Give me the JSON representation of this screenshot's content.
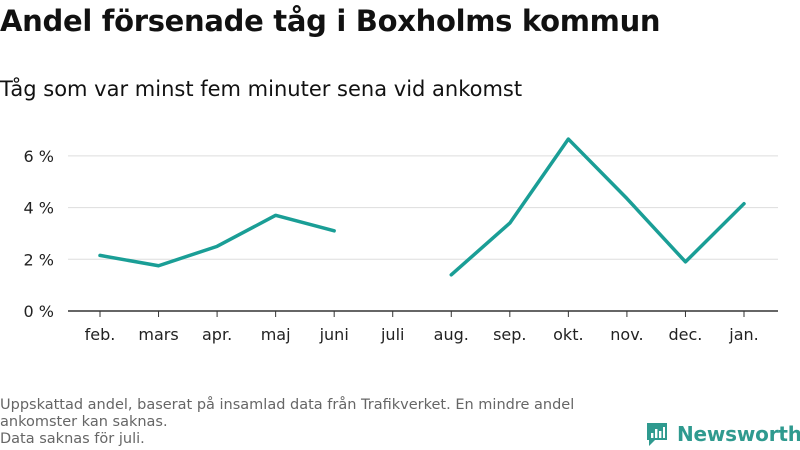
{
  "title": "Andel försenade tåg i Boxholms kommun",
  "subtitle": "Tåg som var minst fem minuter sena vid ankomst",
  "footnote": {
    "line1": "Uppskattad andel, baserat på insamlad data från Trafikverket. En mindre andel",
    "line2": "ankomster kan saknas.",
    "line3": "Data saknas för juli."
  },
  "brand": {
    "name": "Newsworthy",
    "icon": "newsworthy-logo-icon"
  },
  "colors": {
    "line": "#1a9e96",
    "grid": "#dddddd",
    "axis": "#333333",
    "brand": "#2f9a8f"
  },
  "chart_data": {
    "type": "line",
    "title": "Andel försenade tåg i Boxholms kommun",
    "subtitle": "Tåg som var minst fem minuter sena vid ankomst",
    "categories": [
      "feb.",
      "mars",
      "apr.",
      "maj",
      "juni",
      "juli",
      "aug.",
      "sep.",
      "okt.",
      "nov.",
      "dec.",
      "jan."
    ],
    "series": [
      {
        "values": [
          2.15,
          1.75,
          2.5,
          3.7,
          3.1,
          null,
          1.4,
          3.4,
          6.65,
          4.35,
          1.9,
          4.15
        ]
      }
    ],
    "yticks": [
      0,
      2,
      4,
      6
    ],
    "ytick_labels": [
      "0 %",
      "2 %",
      "4 %",
      "6 %"
    ],
    "ylim": [
      0,
      7
    ],
    "xlabel": "",
    "ylabel": "",
    "grid": true,
    "legend": "none"
  }
}
